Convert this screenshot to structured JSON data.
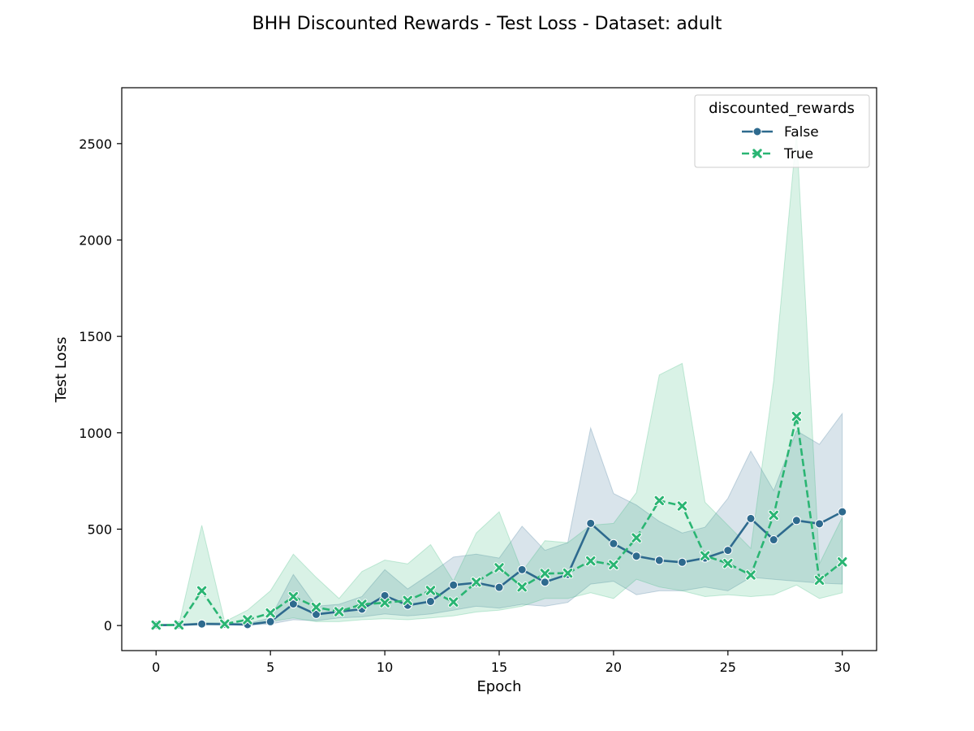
{
  "chart_data": {
    "type": "line",
    "title": "BHH Discounted Rewards - Test Loss - Dataset: adult",
    "xlabel": "Epoch",
    "ylabel": "Test Loss",
    "xlim": [
      -1.5,
      31.5
    ],
    "ylim": [
      -130,
      2790
    ],
    "xticks": [
      "0",
      "5",
      "10",
      "15",
      "20",
      "25",
      "30"
    ],
    "yticks": [
      "0",
      "500",
      "1000",
      "1500",
      "2000",
      "2500"
    ],
    "grid": false,
    "legend": {
      "title": "discounted_rewards",
      "placement": "top-right"
    },
    "x": [
      0,
      1,
      2,
      3,
      4,
      5,
      6,
      7,
      8,
      9,
      10,
      11,
      12,
      13,
      14,
      15,
      16,
      17,
      18,
      19,
      20,
      21,
      22,
      23,
      24,
      25,
      26,
      27,
      28,
      29,
      30
    ],
    "series": [
      {
        "name": "False",
        "color": "#2e6a8e",
        "marker": "circle",
        "line_style": "solid",
        "values": [
          2,
          3,
          8,
          7,
          5,
          20,
          112,
          58,
          72,
          85,
          155,
          105,
          125,
          210,
          222,
          198,
          290,
          225,
          265,
          530,
          425,
          360,
          338,
          328,
          350,
          390,
          555,
          445,
          545,
          528,
          590
        ],
        "ci_lower": [
          0,
          1,
          3,
          3,
          2,
          8,
          30,
          25,
          40,
          45,
          60,
          50,
          60,
          80,
          100,
          90,
          110,
          100,
          120,
          215,
          230,
          160,
          180,
          180,
          200,
          180,
          250,
          240,
          230,
          220,
          215
        ],
        "ci_upper": [
          5,
          6,
          15,
          14,
          10,
          40,
          265,
          100,
          110,
          150,
          290,
          190,
          270,
          355,
          370,
          350,
          515,
          390,
          430,
          1025,
          685,
          625,
          540,
          480,
          510,
          660,
          905,
          700,
          1010,
          940,
          1100
        ]
      },
      {
        "name": "True",
        "color": "#2ab573",
        "marker": "x",
        "line_style": "dashed",
        "values": [
          2,
          3,
          180,
          8,
          30,
          65,
          150,
          95,
          72,
          110,
          118,
          130,
          182,
          122,
          225,
          300,
          200,
          270,
          272,
          335,
          315,
          455,
          648,
          620,
          362,
          322,
          262,
          572,
          1085,
          235,
          330
        ],
        "ci_lower": [
          0,
          1,
          10,
          3,
          10,
          20,
          40,
          20,
          20,
          30,
          35,
          30,
          40,
          50,
          70,
          80,
          100,
          140,
          140,
          170,
          140,
          240,
          200,
          180,
          150,
          160,
          150,
          160,
          210,
          140,
          170
        ],
        "ci_upper": [
          5,
          6,
          520,
          20,
          80,
          180,
          370,
          250,
          140,
          280,
          340,
          320,
          420,
          230,
          480,
          590,
          280,
          440,
          430,
          520,
          530,
          690,
          1300,
          1360,
          640,
          520,
          400,
          1270,
          2560,
          320,
          560
        ]
      }
    ]
  }
}
